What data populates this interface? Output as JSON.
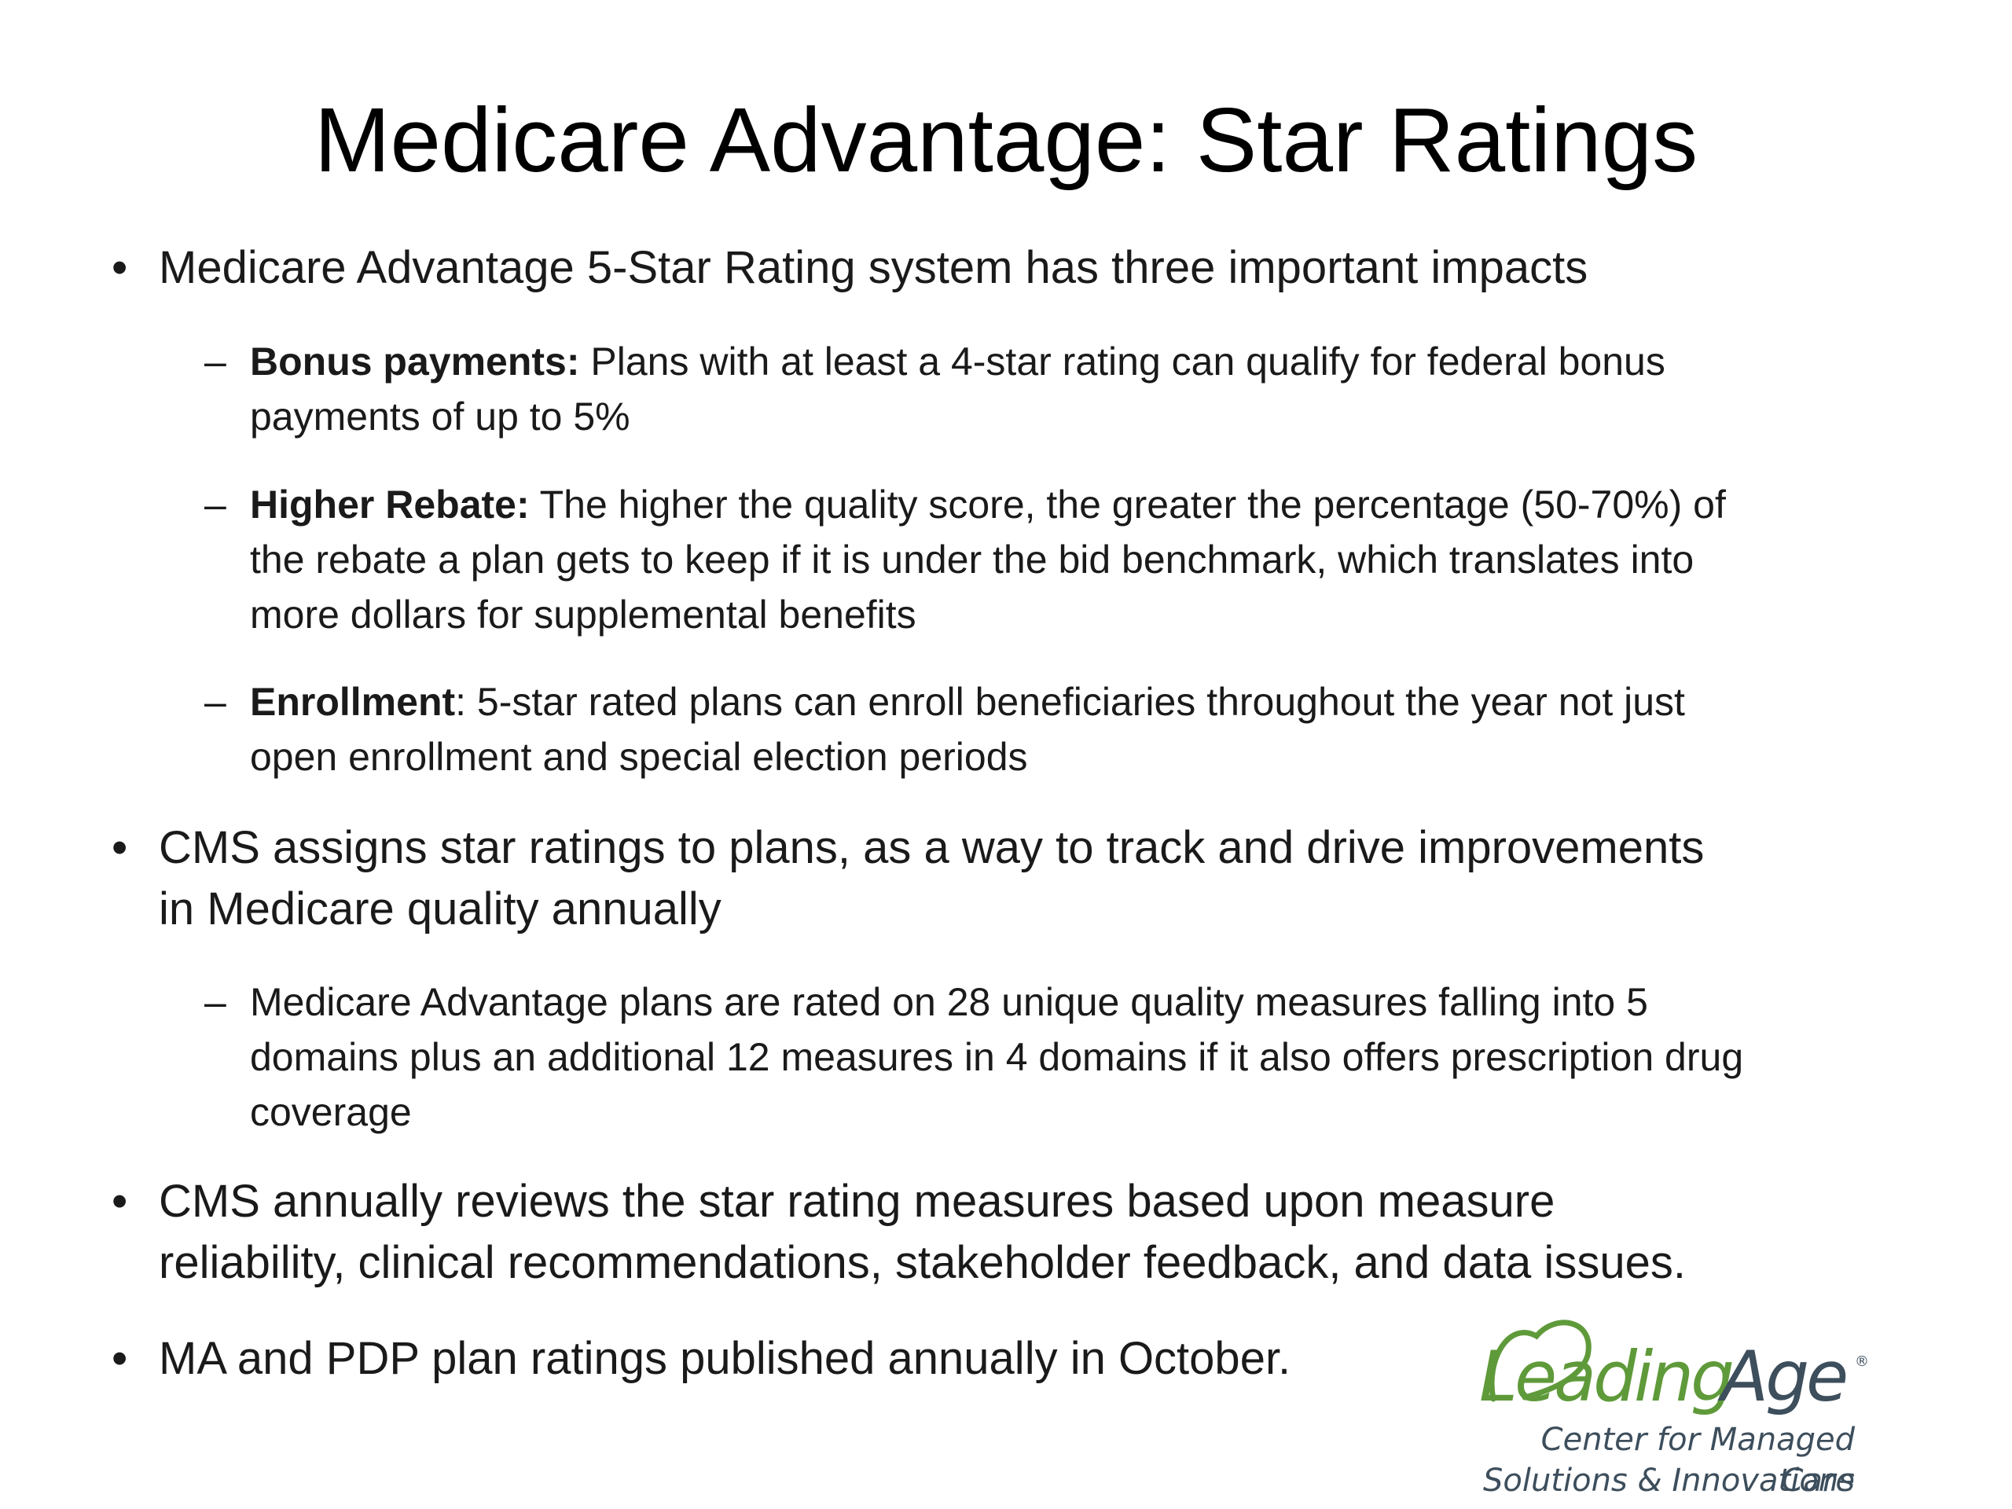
{
  "slide": {
    "title": "Medicare Advantage: Star Ratings",
    "bullet_mark": "•",
    "sub_mark": "–",
    "bullets": [
      {
        "text": "Medicare Advantage 5-Star Rating system has three important impacts"
      },
      {
        "text": "CMS assigns star ratings to plans, as a way to track and drive improvements in Medicare quality annually"
      },
      {
        "text": "CMS annually reviews the star rating measures based upon measure reliability, clinical recommendations, stakeholder feedback, and data issues."
      },
      {
        "text": "MA and PDP plan ratings published annually in October."
      }
    ],
    "subs": [
      {
        "bold": "Bonus payments:",
        "text": " Plans with at least a 4-star rating can qualify for federal bonus payments of up to 5%"
      },
      {
        "bold": "Higher Rebate:",
        "text": " The higher the quality score, the greater the percentage (50-70%) of the rebate a plan gets to keep if it is under the bid benchmark, which translates into more dollars for supplemental benefits"
      },
      {
        "bold": "Enrollment",
        "text": ": 5-star rated plans can enroll beneficiaries throughout the year not just open enrollment and special election periods"
      },
      {
        "bold": "",
        "text": "Medicare Advantage plans are rated on 28 unique quality measures falling into 5 domains plus an additional 12 measures in 4 domains if it also offers prescription drug coverage"
      }
    ]
  },
  "logo": {
    "word_leading": "Leading",
    "word_age": "Age",
    "registered": "®",
    "tagline_line1": "Center for Managed Care",
    "tagline_line2": "Solutions & Innovations",
    "color_green": "#5f9a3a",
    "color_slate": "#3d4e5c"
  }
}
